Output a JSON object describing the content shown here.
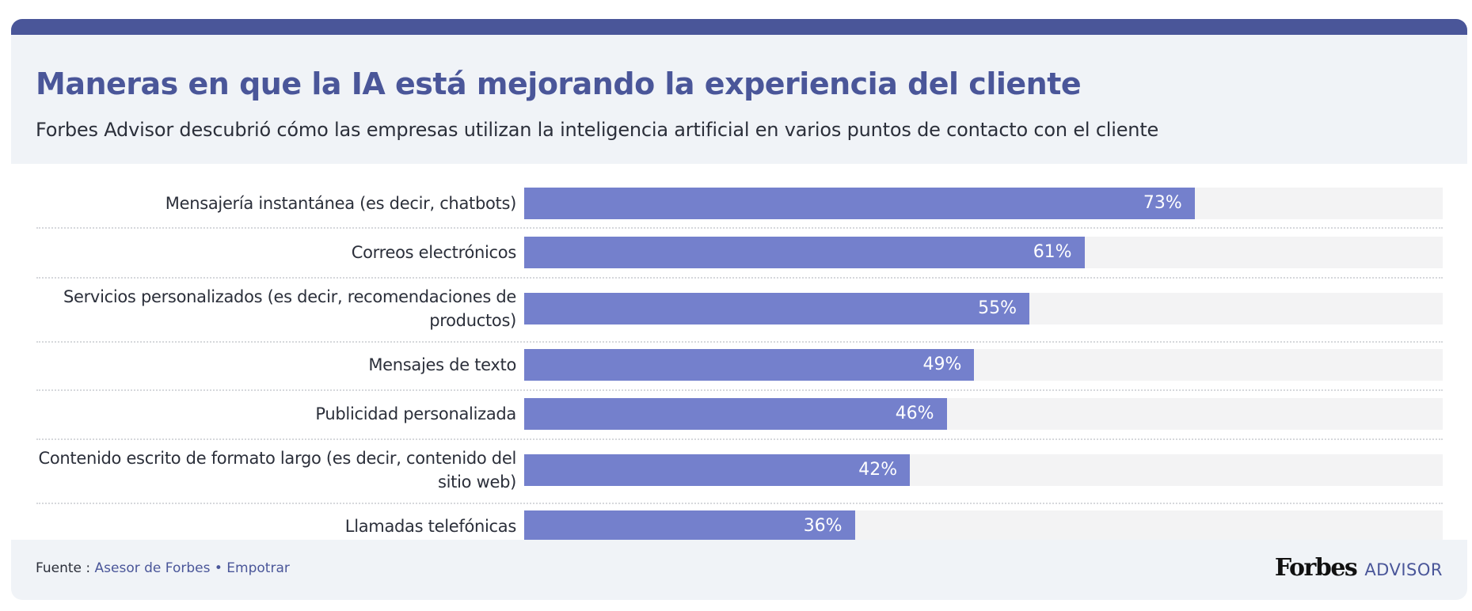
{
  "header": {
    "title": "Maneras en que la IA está mejorando la experiencia del cliente",
    "subtitle": "Forbes Advisor descubrió cómo las empresas utilizan la inteligencia artificial en varios puntos de contacto con el cliente"
  },
  "chart_data": {
    "type": "bar",
    "orientation": "horizontal",
    "title": "Maneras en que la IA está mejorando la experiencia del cliente",
    "subtitle": "Forbes Advisor descubrió cómo las empresas utilizan la inteligencia artificial en varios puntos de contacto con el cliente",
    "xlabel": "",
    "ylabel": "",
    "xlim": [
      0,
      100
    ],
    "unit": "%",
    "grid": false,
    "categories": [
      "Mensajería instantánea (es decir, chatbots)",
      "Correos electrónicos",
      "Servicios personalizados (es decir, recomendaciones de productos)",
      "Mensajes de texto",
      "Publicidad personalizada",
      "Contenido escrito de formato largo (es decir, contenido del sitio web)",
      "Llamadas telefónicas"
    ],
    "values": [
      73,
      61,
      55,
      49,
      46,
      42,
      36
    ],
    "data_labels": [
      "73%",
      "61%",
      "55%",
      "49%",
      "46%",
      "42%",
      "36%"
    ],
    "colors": {
      "bar": "#7480cc",
      "track": "#f3f3f4",
      "accent": "#4a5699"
    }
  },
  "footer": {
    "source_prefix": "Fuente :",
    "source_link": "Asesor de Forbes",
    "bullet": "•",
    "embed_link": "Empotrar",
    "logo_forbes": "Forbes",
    "logo_advisor": "ADVISOR"
  }
}
